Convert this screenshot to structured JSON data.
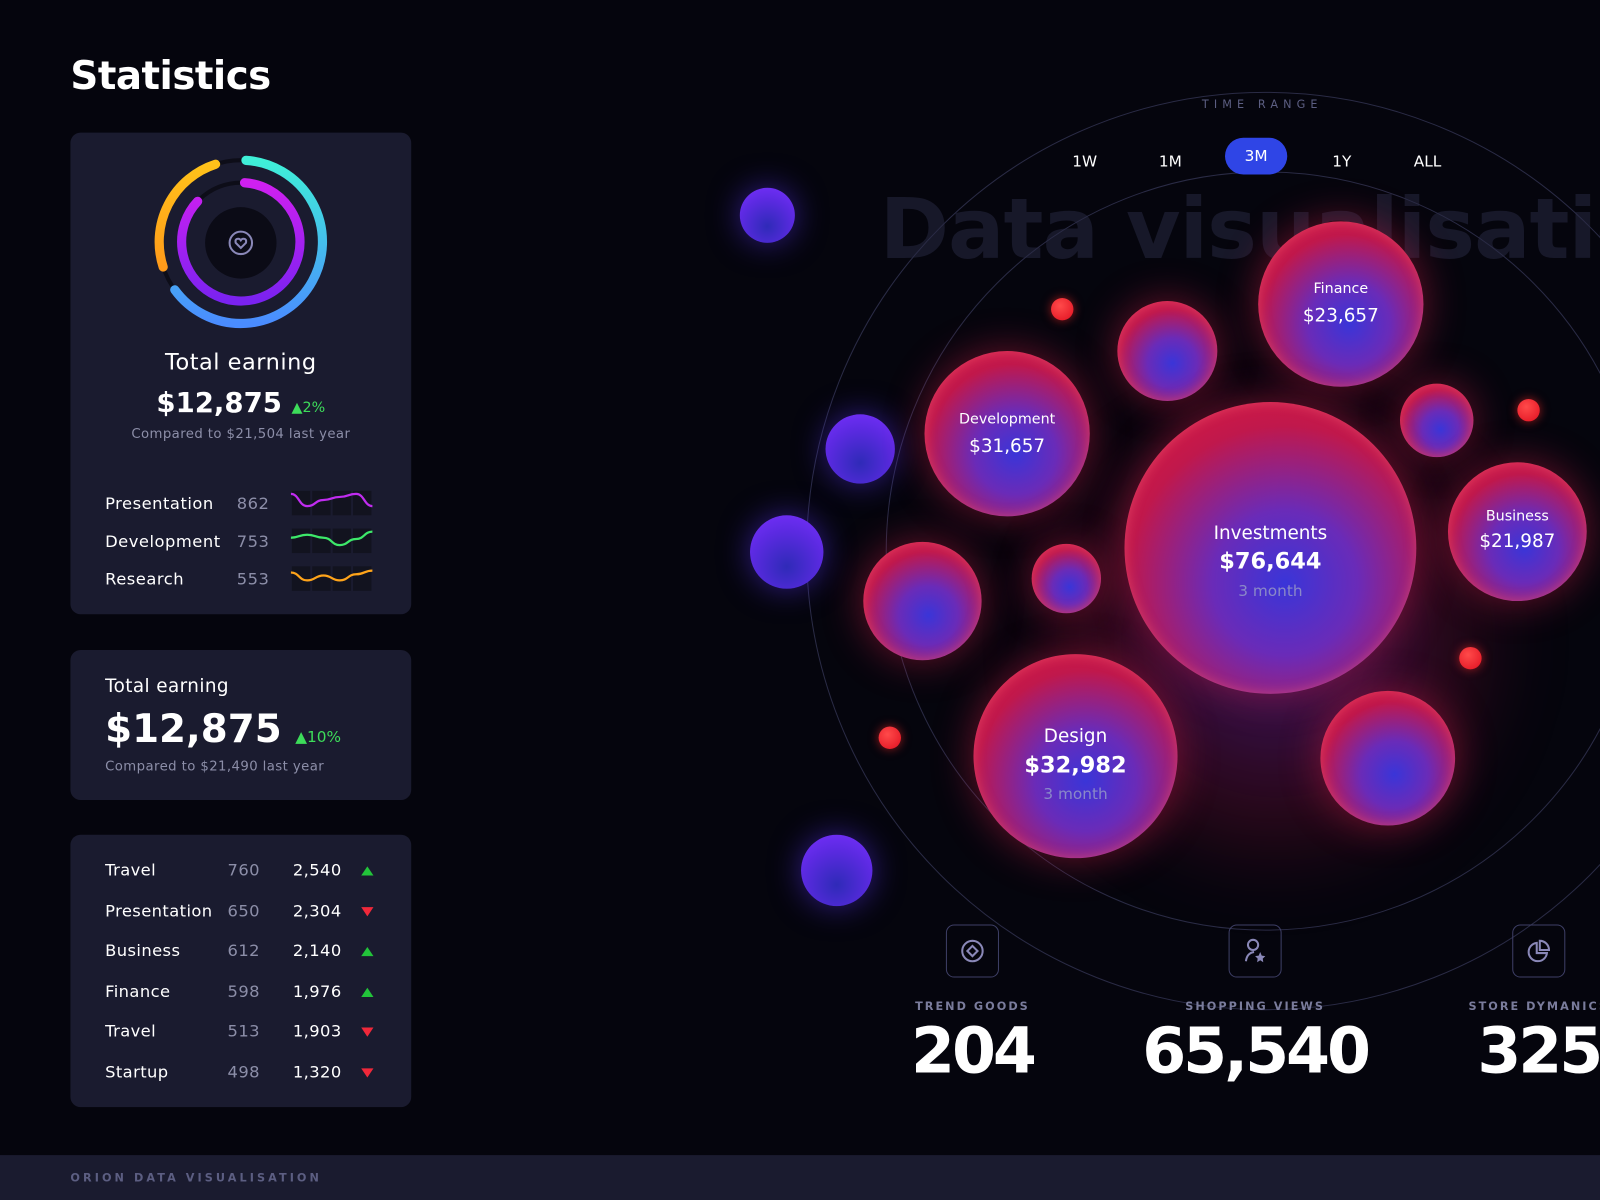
{
  "page_title": "Statistics",
  "card1": {
    "donut": {
      "outer": [
        {
          "fraction": 0.64,
          "color_from": "#3ff0d8",
          "color_to": "#4a8cff"
        },
        {
          "fraction": 0.25,
          "color_from": "#ffc21a",
          "color_to": "#ff9a1a"
        }
      ],
      "inner": [
        {
          "fraction": 0.86,
          "color_from": "#d020f0",
          "color_to": "#7a22f0"
        }
      ],
      "center_icon": "heart-in-circle-icon"
    },
    "title": "Total earning",
    "amount": "$12,875",
    "change": "2%",
    "compare": "Compared to $21,504 last year",
    "rows": [
      {
        "name": "Presentation",
        "value": "862",
        "color": "#c02cf0",
        "trend": [
          3,
          1,
          2,
          2.5,
          3,
          1
        ]
      },
      {
        "name": "Development",
        "value": "753",
        "color": "#3de86a",
        "trend": [
          2,
          2.5,
          2,
          0.8,
          1.8,
          3
        ]
      },
      {
        "name": "Research",
        "value": "553",
        "color": "#ffa41a",
        "trend": [
          2.5,
          1.2,
          2,
          1.2,
          2.2,
          2.8
        ]
      }
    ]
  },
  "card2": {
    "title": "Total earning",
    "amount": "$12,875",
    "change": "10%",
    "compare": "Compared to $21,490 last year"
  },
  "table": [
    {
      "name": "Travel",
      "a": "760",
      "b": "2,540",
      "dir": "up"
    },
    {
      "name": "Presentation",
      "a": "650",
      "b": "2,304",
      "dir": "down"
    },
    {
      "name": "Business",
      "a": "612",
      "b": "2,140",
      "dir": "up"
    },
    {
      "name": "Finance",
      "a": "598",
      "b": "1,976",
      "dir": "up"
    },
    {
      "name": "Travel",
      "a": "513",
      "b": "1,903",
      "dir": "down"
    },
    {
      "name": "Startup",
      "a": "498",
      "b": "1,320",
      "dir": "down"
    }
  ],
  "footer": "ORION DATA VISUALISATION",
  "watermark": "Data visualisation",
  "time_range": {
    "label": "TIME RANGE",
    "options": [
      "1W",
      "1M",
      "3M",
      "1Y",
      "ALL"
    ],
    "selected": "3M"
  },
  "bubbles": {
    "finance": {
      "label": "Finance",
      "value": "$23,657"
    },
    "development": {
      "label": "Development",
      "value": "$31,657"
    },
    "investments": {
      "label": "Investments",
      "value": "$76,644",
      "period": "3 month"
    },
    "business": {
      "label": "Business",
      "value": "$21,987"
    },
    "design": {
      "label": "Design",
      "value": "$32,982",
      "period": "3 month"
    }
  },
  "stats": [
    {
      "label": "TREND GOODS",
      "value": "204",
      "icon": "diamond-circle-icon"
    },
    {
      "label": "SHOPPING VIEWS",
      "value": "65,540",
      "icon": "user-star-icon"
    },
    {
      "label": "STORE DYMANICS",
      "value": "325",
      "icon": "pie-chart-icon"
    }
  ],
  "colors": {
    "accent": "#2f45e6",
    "up": "#22c43a",
    "down": "#f0283a",
    "card": "#1a1b2f"
  }
}
